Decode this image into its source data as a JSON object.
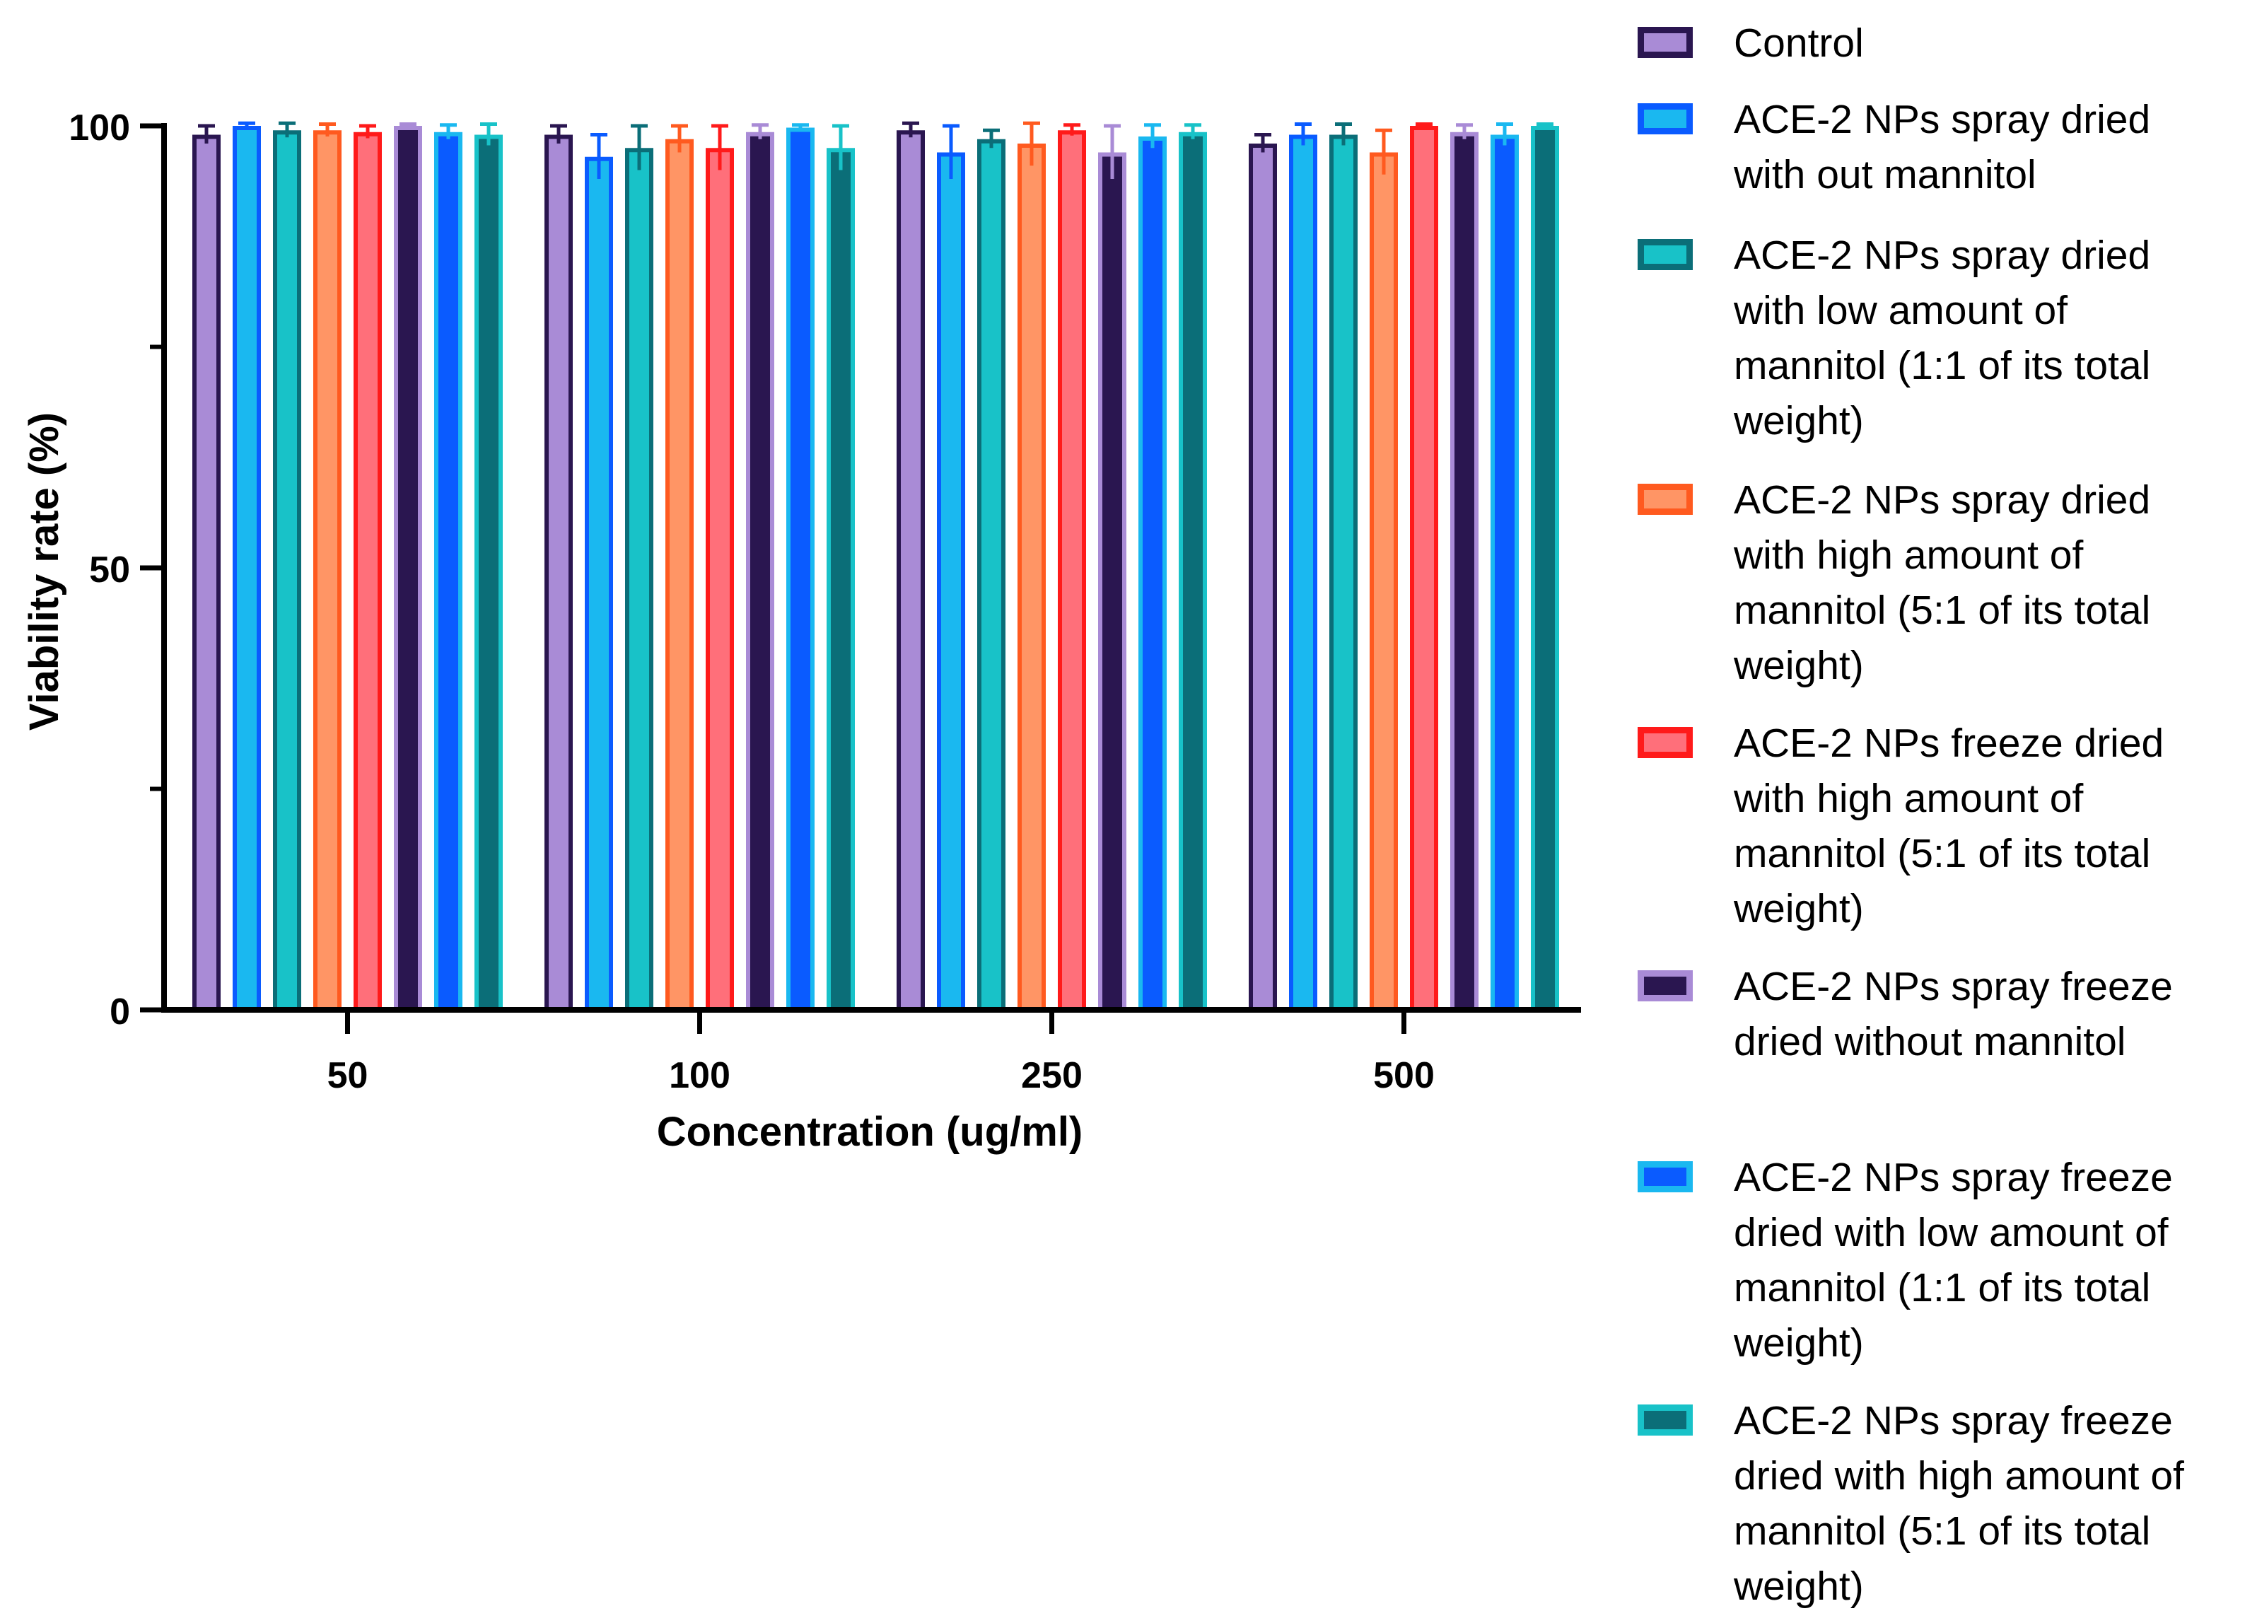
{
  "chart_data": {
    "type": "bar",
    "title": "",
    "xlabel": "Concentration (ug/ml)",
    "ylabel": "Viability rate (%)",
    "ylim": [
      0,
      100
    ],
    "yticks": [
      0,
      50,
      100
    ],
    "categories": [
      "50",
      "100",
      "250",
      "500"
    ],
    "legend_position": "right",
    "series": [
      {
        "name": "Control",
        "fill": "#A98BD6",
        "stroke": "#2A1650",
        "values": [
          99,
          99,
          99.5,
          98
        ],
        "errors": [
          1,
          1,
          0.8,
          1
        ]
      },
      {
        "name": "ACE-2 NPs spray dried\nwith out mannitol",
        "fill": "#1AB8F0",
        "stroke": "#0A5BFF",
        "values": [
          100,
          96.5,
          97,
          99
        ],
        "errors": [
          0.3,
          2.5,
          3,
          1.2
        ]
      },
      {
        "name": "ACE-2 NPs spray dried\nwith low amount of\nmannitol (1:1 of its total\nweight)",
        "fill": "#18C2C8",
        "stroke": "#0B6E78",
        "values": [
          99.5,
          97.5,
          98.5,
          99
        ],
        "errors": [
          0.8,
          2.5,
          1,
          1.2
        ]
      },
      {
        "name": "ACE-2 NPs spray dried\nwith high amount of\nmannitol (5:1 of its total\nweight)",
        "fill": "#FF9565",
        "stroke": "#FF5A1F",
        "values": [
          99.5,
          98.5,
          98,
          97
        ],
        "errors": [
          0.7,
          1.5,
          2.5,
          2.5
        ]
      },
      {
        "name": "ACE-2 NPs freeze dried\nwith high amount of\nmannitol (5:1 of its total\nweight)",
        "fill": "#FF6F7A",
        "stroke": "#FF1A1A",
        "values": [
          99.3,
          97.5,
          99.5,
          100
        ],
        "errors": [
          0.7,
          2.5,
          0.6,
          0.2
        ]
      },
      {
        "name": "ACE-2 NPs spray freeze\ndried without mannitol",
        "fill": "#2A1650",
        "stroke": "#A98BD6",
        "values": [
          100,
          99.3,
          97,
          99.3
        ],
        "errors": [
          0.2,
          0.8,
          3,
          0.8
        ]
      },
      {
        "name": "ACE-2 NPs spray freeze\ndried with low amount of\nmannitol (1:1 of its total\nweight)",
        "fill": "#0A5BFF",
        "stroke": "#1AB8F0",
        "values": [
          99.3,
          99.8,
          98.8,
          99
        ],
        "errors": [
          0.8,
          0.3,
          1.3,
          1.2
        ]
      },
      {
        "name": "ACE-2 NPs spray freeze\ndried with high amount of\nmannitol (5:1 of its total\nweight)",
        "fill": "#0B6E78",
        "stroke": "#18C2C8",
        "values": [
          99,
          97.5,
          99.3,
          100
        ],
        "errors": [
          1.2,
          2.5,
          0.8,
          0.2
        ]
      }
    ]
  }
}
